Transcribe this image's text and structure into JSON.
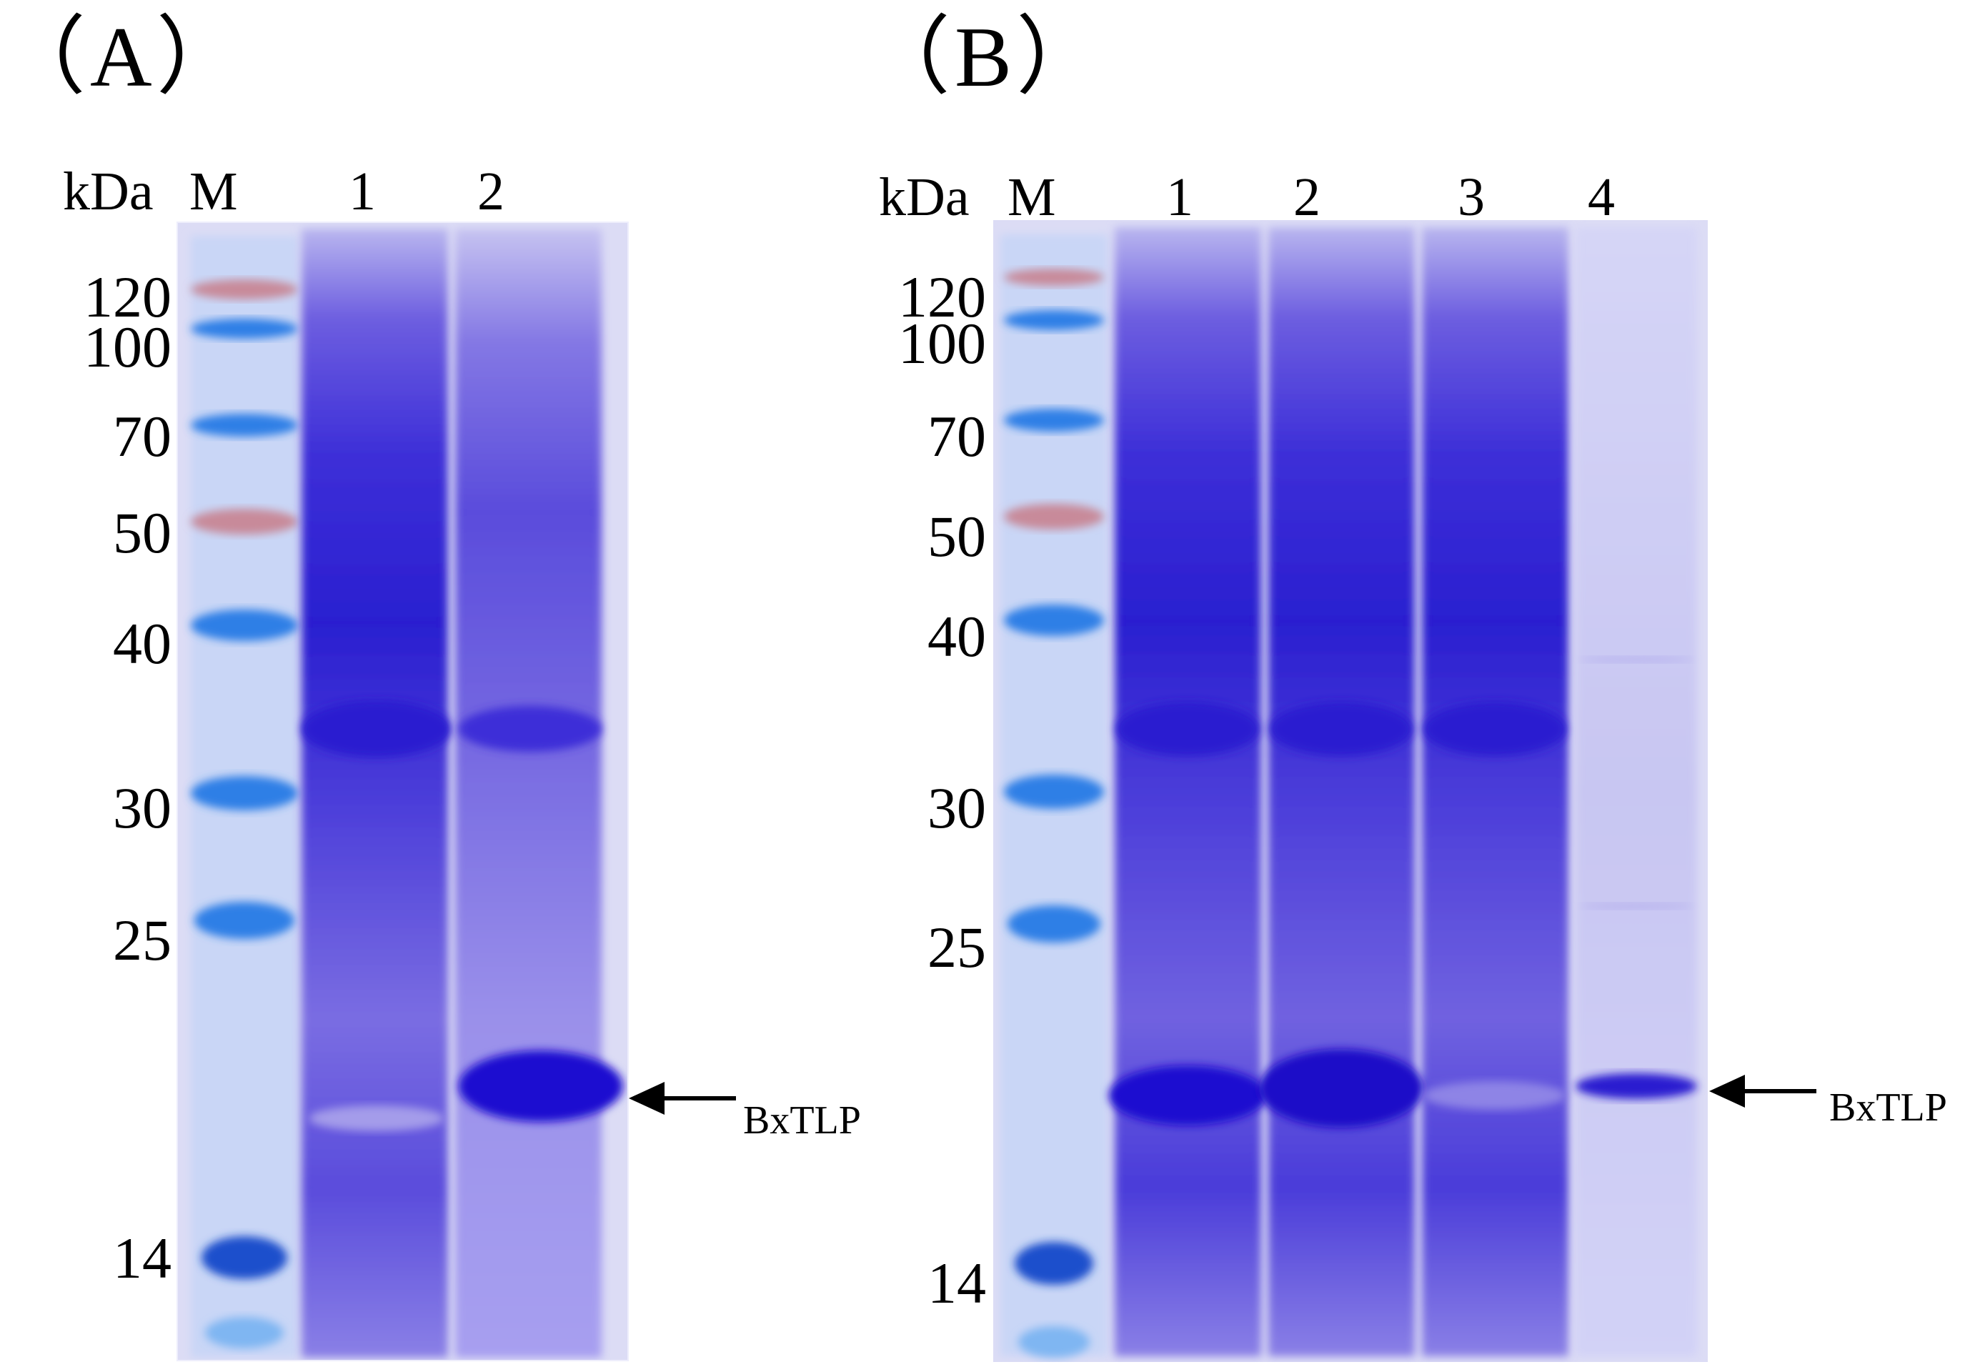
{
  "panels": [
    {
      "label": "（A）",
      "unit_label": "kDa",
      "lanes": [
        "M",
        "1",
        "2"
      ],
      "marker_kda": [
        "120",
        "100",
        "70",
        "50",
        "40",
        "30",
        "25",
        "14"
      ],
      "annotation": "BxTLP"
    },
    {
      "label": "（B）",
      "unit_label": "kDa",
      "lanes": [
        "M",
        "1",
        "2",
        "3",
        "4"
      ],
      "marker_kda": [
        "120",
        "100",
        "70",
        "50",
        "40",
        "30",
        "25",
        "14"
      ],
      "annotation": "BxTLP"
    }
  ],
  "colors": {
    "gel_background": "#d9dbf6",
    "protein_stain": "#2a1fd0",
    "marker_blue": "#2e7fe6",
    "marker_red": "#c88a9a",
    "text": "#000000"
  }
}
